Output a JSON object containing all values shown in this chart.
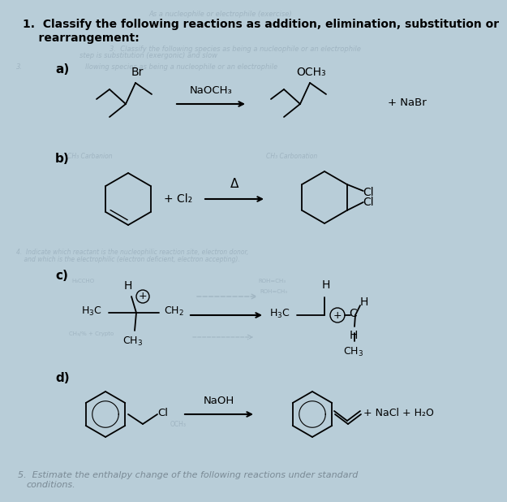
{
  "bg_color": "#b8cdd8",
  "title_line1": "1.  Classify the following reactions as addition, elimination, substitution or",
  "title_line2": "    rearrangement:",
  "section_a_label": "a)",
  "section_b_label": "b)",
  "section_c_label": "c)",
  "section_d_label": "d)",
  "reagent_a": "NaOCH₃",
  "product_a_group": "OCH₃",
  "reactant_a_group": "Br",
  "byproduct_a": "+ NaBr",
  "reagent_b": "+ Cl₂",
  "delta_b": "Δ",
  "reagent_d": "NaOH",
  "byproduct_d": "+ NaCl + H₂O",
  "watermark_color": "#a0b5c2",
  "footer_line1": "5.  Estimate the enthalpy change of the following reactions under standard",
  "footer_line2": "    conditions.",
  "wm_top": "As a nucleophile or electrophile (exercise)",
  "wm_q3": "3.  Classify the following species as being a nucleophile or an electrophile",
  "wm_step": "step is substitution (exergonic) and slow",
  "wm_q4_1": "4.  Indicate which reactant is the nucleophilic reaction site, electron donor,",
  "wm_q4_2": "    and which is the electrophilic (electron deficient, electron accepting).",
  "wm_b_left": "CH₃ Carbanion",
  "wm_b_right": "CH₃ Carbonation",
  "wm_c_dashed1": "ROH=CH₃",
  "wm_c_dashed2": "CH₃/% + Crypto",
  "wm_d_och3": "OCH₃"
}
